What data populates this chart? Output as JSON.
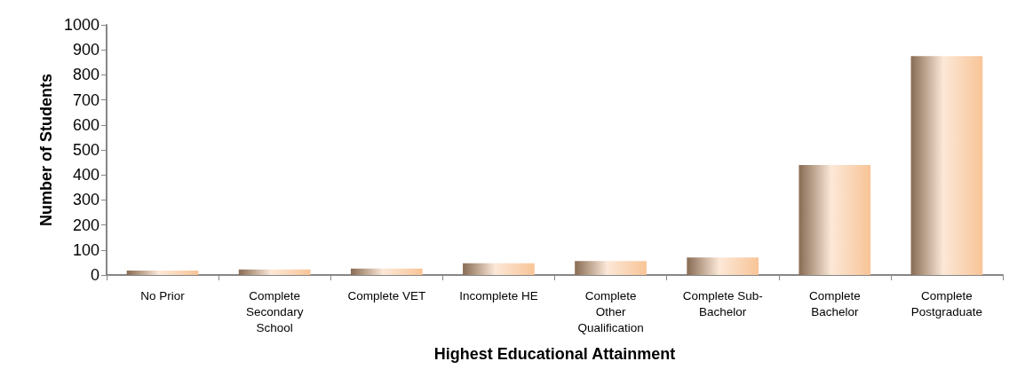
{
  "chart_data": {
    "type": "bar",
    "xlabel": "Highest Educational Attainment",
    "ylabel": "Number of Students",
    "categories": [
      "No Prior",
      "Complete\nSecondary\nSchool",
      "Complete VET",
      "Incomplete HE",
      "Complete\nOther\nQualification",
      "Complete Sub-\nBachelor",
      "Complete\nBachelor",
      "Complete\nPostgraduate"
    ],
    "values": [
      18,
      22,
      26,
      47,
      56,
      70,
      440,
      875
    ],
    "color": "#f8c496",
    "ylim": [
      0,
      1000
    ],
    "yticks": [
      0,
      100,
      200,
      300,
      400,
      500,
      600,
      700,
      800,
      900,
      1000
    ],
    "grid": false
  }
}
